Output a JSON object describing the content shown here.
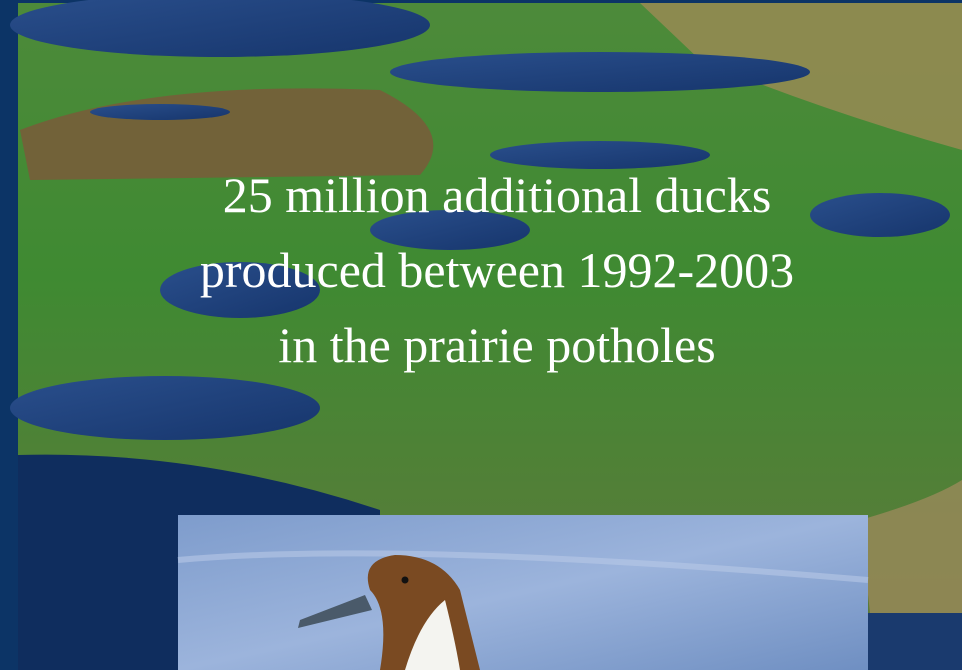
{
  "slide": {
    "text_lines": [
      "25 million additional ducks",
      "produced between 1992-2003",
      "in the prairie potholes"
    ]
  }
}
